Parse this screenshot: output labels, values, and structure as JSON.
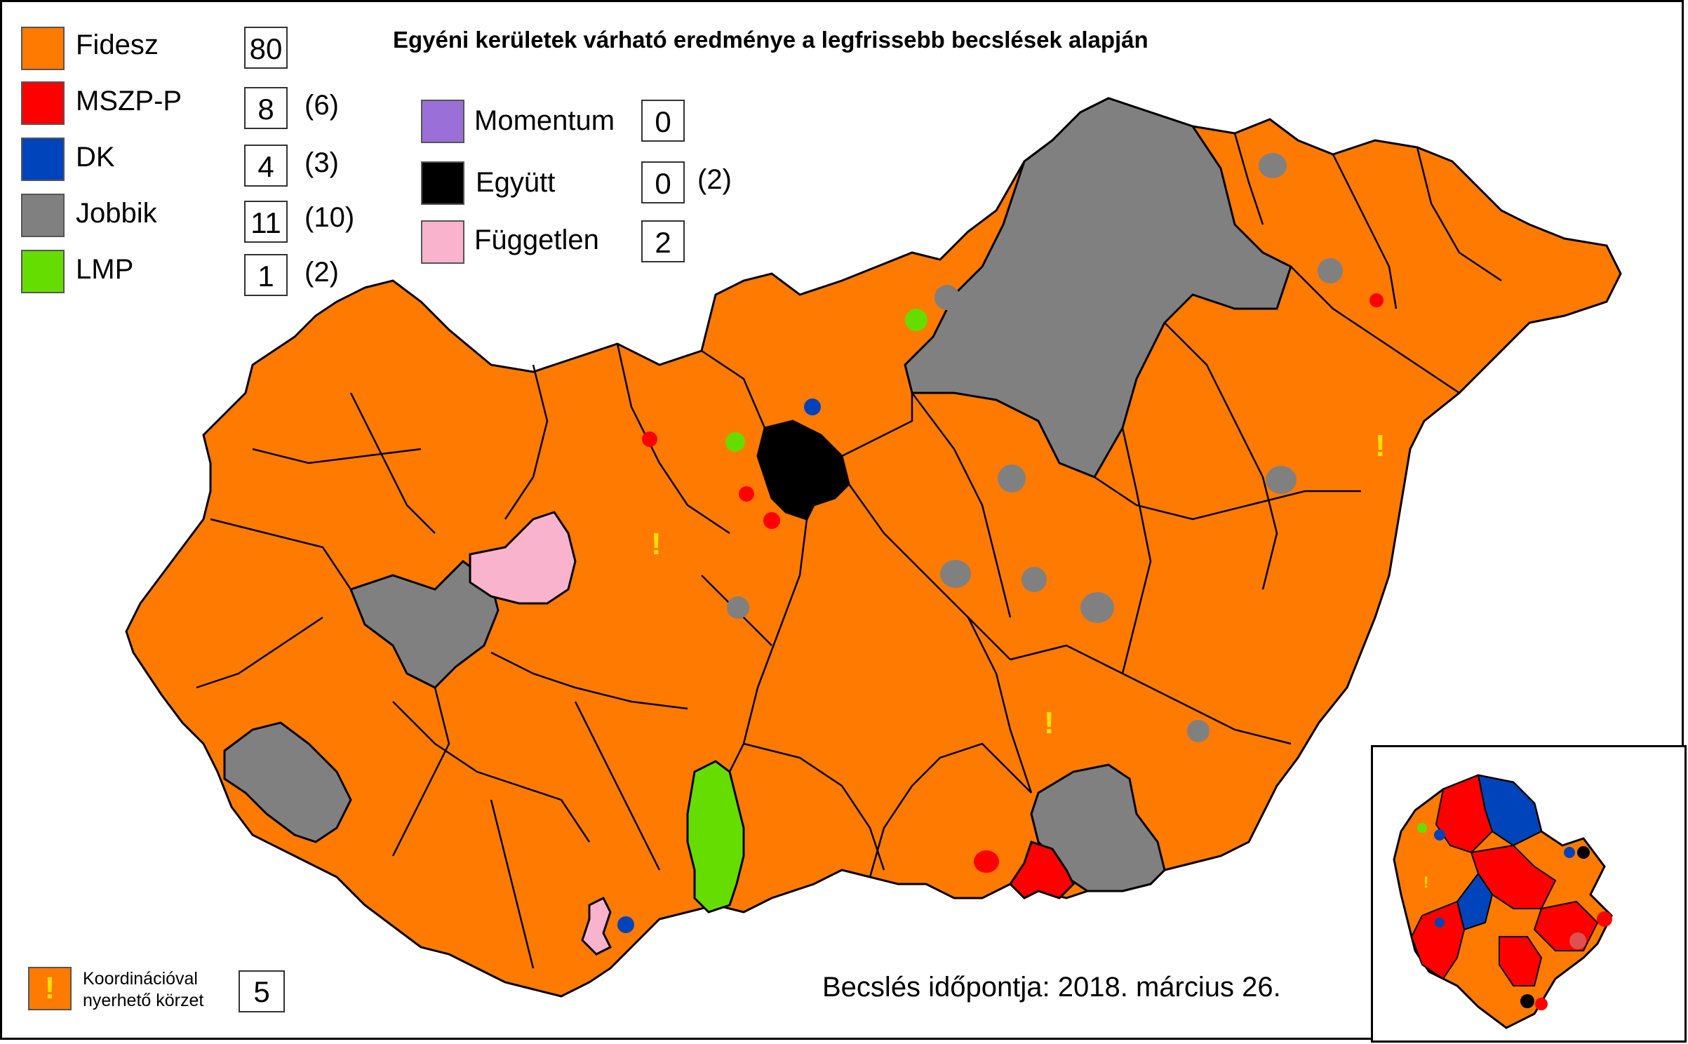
{
  "title": "Egyéni kerületek várható eredménye a legfrissebb becslések alapján",
  "colors": {
    "fidesz": "#ff7a00",
    "mszp": "#ff0000",
    "dk": "#0044bb",
    "jobbik": "#808080",
    "lmp": "#66dd00",
    "momentum": "#9a70d8",
    "egyutt": "#000000",
    "fuggetlen": "#f9b3cc",
    "coord_mark": "#ffe000"
  },
  "legend_left": [
    {
      "label": "Fidesz",
      "count": "80",
      "prev": ""
    },
    {
      "label": "MSZP-P",
      "count": "8",
      "prev": "(6)"
    },
    {
      "label": "DK",
      "count": "4",
      "prev": "(3)"
    },
    {
      "label": "Jobbik",
      "count": "11",
      "prev": "(10)"
    },
    {
      "label": "LMP",
      "count": "1",
      "prev": "(2)"
    }
  ],
  "legend_right": [
    {
      "label": "Momentum",
      "count": "0",
      "prev": ""
    },
    {
      "label": "Együtt",
      "count": "0",
      "prev": "(2)"
    },
    {
      "label": "Független",
      "count": "2",
      "prev": ""
    }
  ],
  "coordination": {
    "mark": "!",
    "line1": "Koordinációval",
    "line2": "nyerhető körzet",
    "count": "5"
  },
  "date_note": "Becslés időpontja: 2018. március 26."
}
